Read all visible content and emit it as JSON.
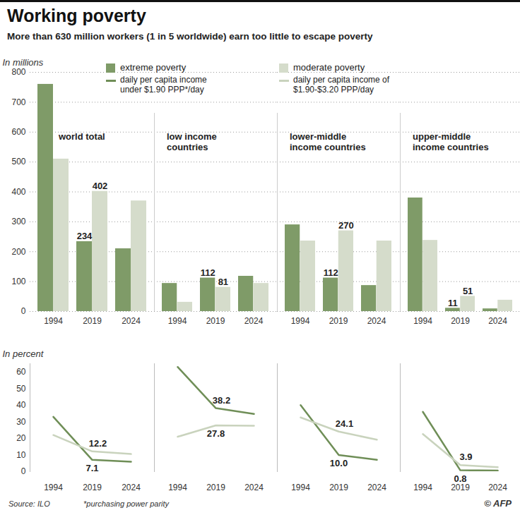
{
  "title": "Working poverty",
  "subtitle": "More than 630 million workers (1 in 5 worldwide) earn too little to escape poverty",
  "legend_notes": {
    "extreme poverty": "daily per capita income under $1.90 PPP*/day",
    "moderate poverty": "daily per capita income of $1.90-$3.20 PPP/day"
  },
  "source": "Source: ILO",
  "footnote": "*purchasing power parity",
  "credit": "© AFP",
  "chart_data": [
    {
      "type": "bar",
      "title": "world total",
      "ylabel": "In millions",
      "legend": "top",
      "categories": [
        "1994",
        "2019",
        "2024"
      ],
      "series": [
        {
          "name": "extreme poverty",
          "color": "#7f9b68",
          "values": [
            760,
            234,
            210
          ],
          "value_labels": [
            null,
            "234",
            null
          ]
        },
        {
          "name": "moderate poverty",
          "color": "#d5dccb",
          "values": [
            510,
            402,
            370
          ],
          "value_labels": [
            null,
            "402",
            null
          ]
        }
      ],
      "ylim": [
        0,
        800
      ],
      "yticks": [
        0,
        100,
        200,
        300,
        400,
        500,
        600,
        700,
        800
      ],
      "grid": true,
      "data_labels": true
    },
    {
      "type": "bar",
      "title": "low income countries",
      "categories": [
        "1994",
        "2019",
        "2024"
      ],
      "series": [
        {
          "name": "extreme poverty",
          "color": "#7f9b68",
          "values": [
            94,
            112,
            118
          ],
          "value_labels": [
            null,
            "112",
            null
          ]
        },
        {
          "name": "moderate poverty",
          "color": "#d5dccb",
          "values": [
            31,
            81,
            94
          ],
          "value_labels": [
            null,
            "81",
            null
          ]
        }
      ],
      "ylim": [
        0,
        800
      ],
      "yticks": [
        0,
        100,
        200,
        300,
        400,
        500,
        600,
        700,
        800
      ],
      "grid": true,
      "data_labels": true,
      "tick_labels": "x"
    },
    {
      "type": "bar",
      "title": "lower-middle income countries",
      "categories": [
        "1994",
        "2019",
        "2024"
      ],
      "series": [
        {
          "name": "extreme poverty",
          "color": "#7f9b68",
          "values": [
            290,
            112,
            87
          ],
          "value_labels": [
            null,
            "112",
            null
          ]
        },
        {
          "name": "moderate poverty",
          "color": "#d5dccb",
          "values": [
            236,
            270,
            236
          ],
          "value_labels": [
            null,
            "270",
            null
          ]
        }
      ],
      "ylim": [
        0,
        800
      ],
      "yticks": [
        0,
        100,
        200,
        300,
        400,
        500,
        600,
        700,
        800
      ],
      "grid": true,
      "data_labels": true,
      "tick_labels": "x"
    },
    {
      "type": "bar",
      "title": "upper-middle income countries",
      "categories": [
        "1994",
        "2019",
        "2024"
      ],
      "series": [
        {
          "name": "extreme poverty",
          "color": "#7f9b68",
          "values": [
            380,
            11,
            9
          ],
          "value_labels": [
            null,
            "11",
            null
          ]
        },
        {
          "name": "moderate poverty",
          "color": "#d5dccb",
          "values": [
            238,
            51,
            38
          ],
          "value_labels": [
            null,
            "51",
            null
          ]
        }
      ],
      "ylim": [
        0,
        800
      ],
      "yticks": [
        0,
        100,
        200,
        300,
        400,
        500,
        600,
        700,
        800
      ],
      "grid": true,
      "data_labels": true,
      "tick_labels": "x"
    },
    {
      "type": "line",
      "ylabel": "In percent",
      "categories": [
        "1994",
        "2019",
        "2024"
      ],
      "series": [
        {
          "name": "extreme poverty",
          "color": "#6f8e57",
          "values": [
            33,
            7.1,
            6.0
          ],
          "value_labels": [
            null,
            "7.1",
            null
          ]
        },
        {
          "name": "moderate poverty",
          "color": "#c9d3bd",
          "values": [
            22,
            12.2,
            10.6
          ],
          "value_labels": [
            null,
            "12.2",
            null
          ]
        }
      ],
      "ylim": [
        0,
        65
      ],
      "yticks": [
        0,
        10,
        20,
        30,
        40,
        50,
        60
      ],
      "grid": false,
      "data_labels": true
    },
    {
      "type": "line",
      "categories": [
        "1994",
        "2019",
        "2024"
      ],
      "series": [
        {
          "name": "extreme poverty",
          "color": "#6f8e57",
          "values": [
            63,
            38.2,
            34.7
          ],
          "value_labels": [
            null,
            "38.2",
            null
          ]
        },
        {
          "name": "moderate poverty",
          "color": "#c9d3bd",
          "values": [
            21,
            27.8,
            27.6
          ],
          "value_labels": [
            null,
            "27.8",
            null
          ]
        }
      ],
      "ylim": [
        0,
        65
      ],
      "yticks": [
        0,
        10,
        20,
        30,
        40,
        50,
        60
      ],
      "grid": false,
      "data_labels": true,
      "tick_labels": "x"
    },
    {
      "type": "line",
      "categories": [
        "1994",
        "2019",
        "2024"
      ],
      "series": [
        {
          "name": "extreme poverty",
          "color": "#6f8e57",
          "values": [
            40,
            10.0,
            7.1
          ],
          "value_labels": [
            null,
            "10.0",
            null
          ]
        },
        {
          "name": "moderate poverty",
          "color": "#c9d3bd",
          "values": [
            32.6,
            24.1,
            19.2
          ],
          "value_labels": [
            null,
            "24.1",
            null
          ]
        }
      ],
      "ylim": [
        0,
        65
      ],
      "yticks": [
        0,
        10,
        20,
        30,
        40,
        50,
        60
      ],
      "grid": false,
      "data_labels": true,
      "tick_labels": "x"
    },
    {
      "type": "line",
      "categories": [
        "1994",
        "2019",
        "2024"
      ],
      "series": [
        {
          "name": "extreme poverty",
          "color": "#6f8e57",
          "values": [
            36,
            0.8,
            0.6
          ],
          "value_labels": [
            null,
            "0.8",
            null
          ]
        },
        {
          "name": "moderate poverty",
          "color": "#c9d3bd",
          "values": [
            22.6,
            3.9,
            2.7
          ],
          "value_labels": [
            null,
            "3.9",
            null
          ]
        }
      ],
      "ylim": [
        0,
        65
      ],
      "yticks": [
        0,
        10,
        20,
        30,
        40,
        50,
        60
      ],
      "grid": false,
      "data_labels": true,
      "tick_labels": "x"
    }
  ]
}
